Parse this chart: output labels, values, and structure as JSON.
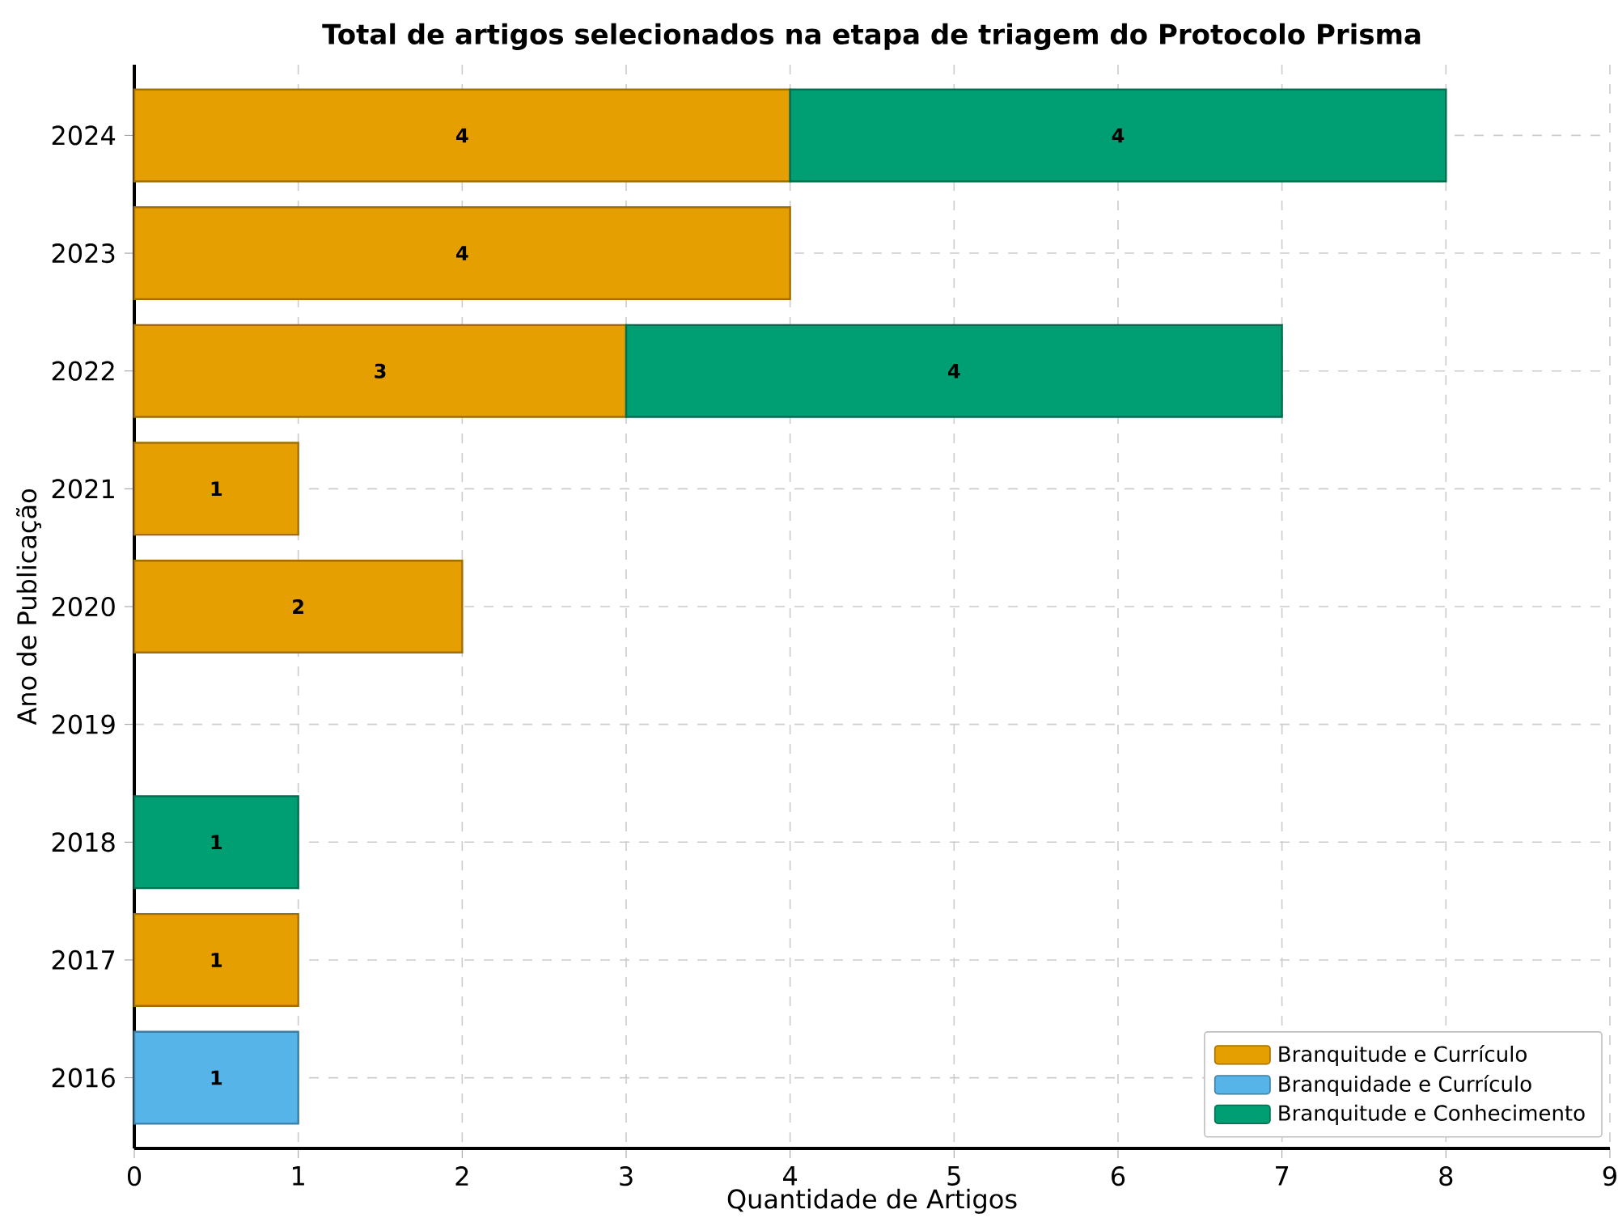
{
  "chart_data": {
    "type": "bar",
    "orientation": "horizontal",
    "stacked": true,
    "title": "Total de artigos selecionados na etapa de triagem do Protocolo Prisma",
    "xlabel": "Quantidade de Artigos",
    "ylabel": "Ano de Publicação",
    "categories": [
      "2024",
      "2023",
      "2022",
      "2021",
      "2020",
      "2019",
      "2018",
      "2017",
      "2016"
    ],
    "series": [
      {
        "name": "Branquitude e Currículo",
        "color": "#e69f00",
        "values": [
          4,
          4,
          3,
          1,
          2,
          null,
          null,
          1,
          null
        ]
      },
      {
        "name": "Branquidade e Currículo",
        "color": "#56b4e9",
        "values": [
          null,
          null,
          null,
          null,
          null,
          null,
          null,
          null,
          1
        ]
      },
      {
        "name": "Branquitude e Conhecimento",
        "color": "#009e73",
        "values": [
          4,
          null,
          4,
          null,
          null,
          null,
          1,
          null,
          null
        ]
      }
    ],
    "xlim": [
      0,
      9
    ],
    "xticks": [
      0,
      1,
      2,
      3,
      4,
      5,
      6,
      7,
      8,
      9
    ],
    "grid": true,
    "legend": "bottom right",
    "data_labels": true
  }
}
